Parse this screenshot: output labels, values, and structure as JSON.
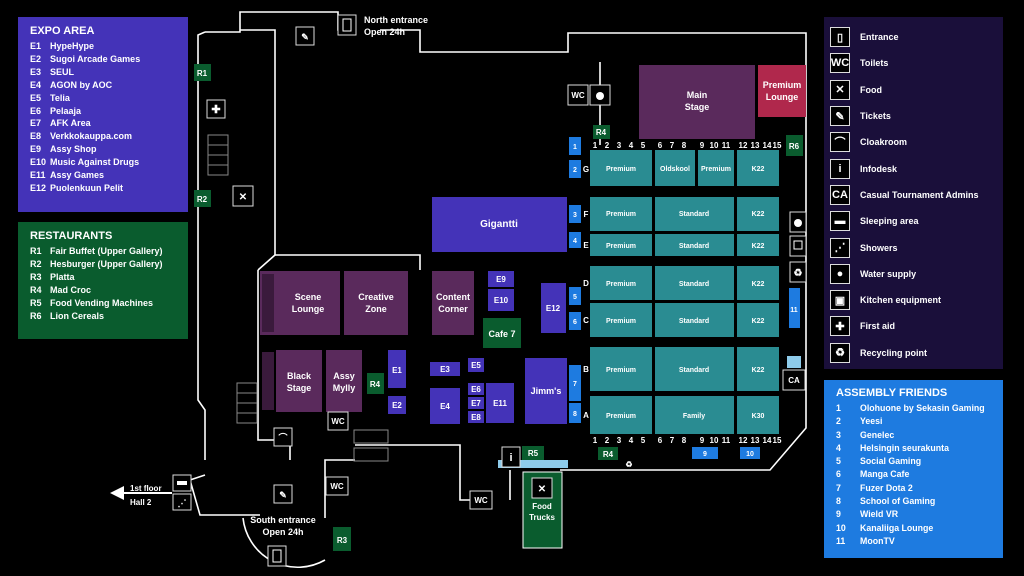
{
  "expo": {
    "title": "EXPO AREA",
    "items": [
      {
        "code": "E1",
        "name": "HypeHype"
      },
      {
        "code": "E2",
        "name": "Sugoi Arcade Games"
      },
      {
        "code": "E3",
        "name": "SEUL"
      },
      {
        "code": "E4",
        "name": "AGON by AOC"
      },
      {
        "code": "E5",
        "name": "Telia"
      },
      {
        "code": "E6",
        "name": "Pelaaja"
      },
      {
        "code": "E7",
        "name": "AFK Area"
      },
      {
        "code": "E8",
        "name": "Verkkokauppa.com"
      },
      {
        "code": "E9",
        "name": "Assy Shop"
      },
      {
        "code": "E10",
        "name": "Music Against Drugs"
      },
      {
        "code": "E11",
        "name": "Assy Games"
      },
      {
        "code": "E12",
        "name": "Puolenkuun Pelit"
      }
    ]
  },
  "restaurants": {
    "title": "RESTAURANTS",
    "items": [
      {
        "code": "R1",
        "name": "Fair Buffet (Upper Gallery)"
      },
      {
        "code": "R2",
        "name": "Hesburger (Upper Gallery)"
      },
      {
        "code": "R3",
        "name": "Platta"
      },
      {
        "code": "R4",
        "name": "Mad Croc"
      },
      {
        "code": "R5",
        "name": "Food Vending Machines"
      },
      {
        "code": "R6",
        "name": "Lion Cereals"
      }
    ]
  },
  "legend": {
    "items": [
      {
        "icon": "door-icon",
        "glyph": "▯",
        "label": "Entrance"
      },
      {
        "icon": "wc-icon",
        "glyph": "WC",
        "label": "Toilets"
      },
      {
        "icon": "fork-knife-icon",
        "glyph": "✕",
        "label": "Food"
      },
      {
        "icon": "ticket-icon",
        "glyph": "✎",
        "label": "Tickets"
      },
      {
        "icon": "hanger-icon",
        "glyph": "⌒",
        "label": "Cloakroom"
      },
      {
        "icon": "info-icon",
        "glyph": "i",
        "label": "Infodesk"
      },
      {
        "icon": "ca-icon",
        "glyph": "CA",
        "label": "Casual Tournament Admins"
      },
      {
        "icon": "bed-icon",
        "glyph": "▬",
        "label": "Sleeping area"
      },
      {
        "icon": "shower-icon",
        "glyph": "⋰",
        "label": "Showers"
      },
      {
        "icon": "water-drop-icon",
        "glyph": "●",
        "label": "Water supply"
      },
      {
        "icon": "kitchen-icon",
        "glyph": "▣",
        "label": "Kitchen equipment"
      },
      {
        "icon": "first-aid-icon",
        "glyph": "✚",
        "label": "First aid"
      },
      {
        "icon": "recycling-icon",
        "glyph": "♻",
        "label": "Recycling point"
      }
    ]
  },
  "friends": {
    "title": "ASSEMBLY FRIENDS",
    "items": [
      {
        "code": "1",
        "name": "Olohuone by Sekasin Gaming"
      },
      {
        "code": "2",
        "name": "Yeesi"
      },
      {
        "code": "3",
        "name": "Genelec"
      },
      {
        "code": "4",
        "name": "Helsingin seurakunta"
      },
      {
        "code": "5",
        "name": "Social Gaming"
      },
      {
        "code": "6",
        "name": "Manga Cafe"
      },
      {
        "code": "7",
        "name": "Fuzer Dota 2"
      },
      {
        "code": "8",
        "name": "School of Gaming"
      },
      {
        "code": "9",
        "name": "Wield VR"
      },
      {
        "code": "10",
        "name": "Kanaliiga Lounge"
      },
      {
        "code": "11",
        "name": "MoonTV"
      }
    ]
  },
  "map": {
    "north_entrance": "North entrance",
    "north_hours": "Open 24h",
    "south_entrance": "South entrance",
    "south_hours": "Open 24h",
    "first_floor": "1st floor",
    "hall2": "Hall 2",
    "main_stage_1": "Main",
    "main_stage_2": "Stage",
    "premium_lounge_1": "Premium",
    "premium_lounge_2": "Lounge",
    "gigantti": "Gigantti",
    "scene_lounge_1": "Scene",
    "scene_lounge_2": "Lounge",
    "creative_zone_1": "Creative",
    "creative_zone_2": "Zone",
    "content_corner_1": "Content",
    "content_corner_2": "Corner",
    "cafe7": "Cafe 7",
    "black_stage_1": "Black",
    "black_stage_2": "Stage",
    "assy_mylly_1": "Assy",
    "assy_mylly_2": "Mylly",
    "jimms": "Jimm's",
    "food_trucks_1": "Food",
    "food_trucks_2": "Trucks",
    "wc": "WC",
    "ca": "CA",
    "labels": {
      "r1": "R1",
      "r2": "R2",
      "r3": "R3",
      "r4a": "R4",
      "r4b": "R4",
      "r4c": "R4",
      "r5": "R5",
      "r6": "R6",
      "e1": "E1",
      "e2": "E2",
      "e3": "E3",
      "e4": "E4",
      "e5": "E5",
      "e6": "E6",
      "e7": "E7",
      "e8": "E8",
      "e9": "E9",
      "e10": "E10",
      "e11": "E11",
      "e12": "E12"
    },
    "row_letters": [
      "G",
      "F",
      "E",
      "D",
      "C",
      "B",
      "A"
    ],
    "top_numbers": [
      "1",
      "2",
      "3",
      "4",
      "5",
      "6",
      "7",
      "8",
      "9",
      "10",
      "11",
      "12",
      "13",
      "14",
      "15"
    ],
    "blocks": {
      "premium": "Premium",
      "oldskool": "Oldskool",
      "standard": "Standard",
      "family": "Family",
      "k22": "K22",
      "k30": "K30"
    },
    "friend_markers": [
      "1",
      "2",
      "3",
      "4",
      "5",
      "6",
      "7",
      "8",
      "9",
      "10",
      "11"
    ]
  }
}
